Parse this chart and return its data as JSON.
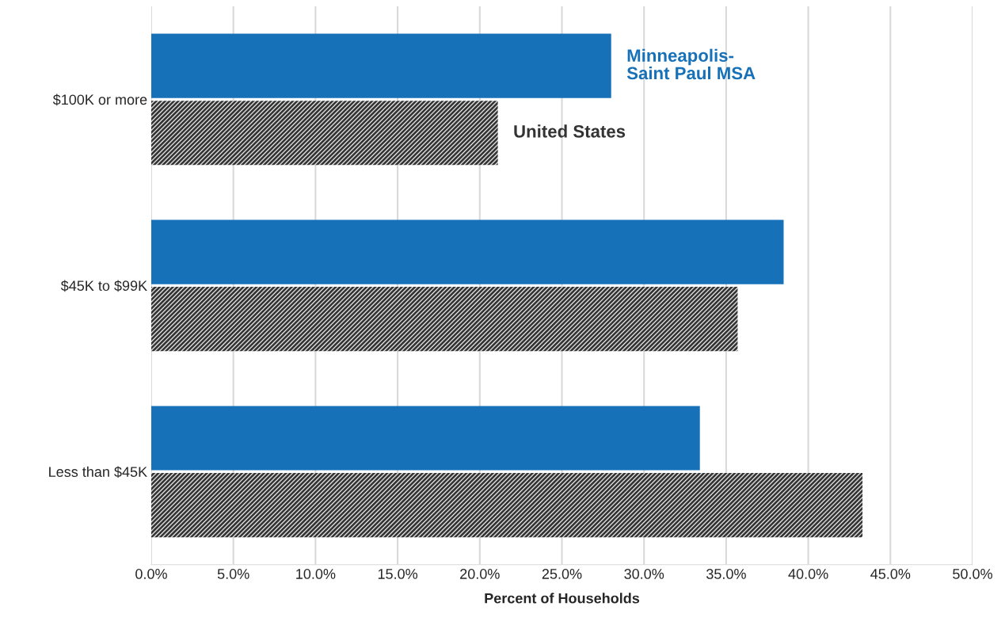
{
  "chart_data": {
    "type": "bar",
    "orientation": "horizontal",
    "xlabel": "Percent of Households",
    "categories": [
      "$100K or more",
      "$45K to $99K",
      "Less than $45K"
    ],
    "series": [
      {
        "name": "Minneapolis-\nSaint Paul MSA",
        "color": "#1771b8",
        "values": [
          28.0,
          38.5,
          33.4
        ]
      },
      {
        "name": "United States",
        "color": "#333333",
        "values": [
          21.1,
          35.7,
          43.3
        ]
      }
    ],
    "xlim": [
      0,
      50
    ],
    "xticks": [
      {
        "value": 0,
        "label": "0.0%"
      },
      {
        "value": 5,
        "label": "5.0%"
      },
      {
        "value": 10,
        "label": "10.0%"
      },
      {
        "value": 15,
        "label": "15.0%"
      },
      {
        "value": 20,
        "label": "20.0%"
      },
      {
        "value": 25,
        "label": "25.0%"
      },
      {
        "value": 30,
        "label": "30.0%"
      },
      {
        "value": 35,
        "label": "35.0%"
      },
      {
        "value": 40,
        "label": "40.0%"
      },
      {
        "value": 45,
        "label": "45.0%"
      },
      {
        "value": 50,
        "label": "50.0%"
      }
    ],
    "grid": "x"
  }
}
